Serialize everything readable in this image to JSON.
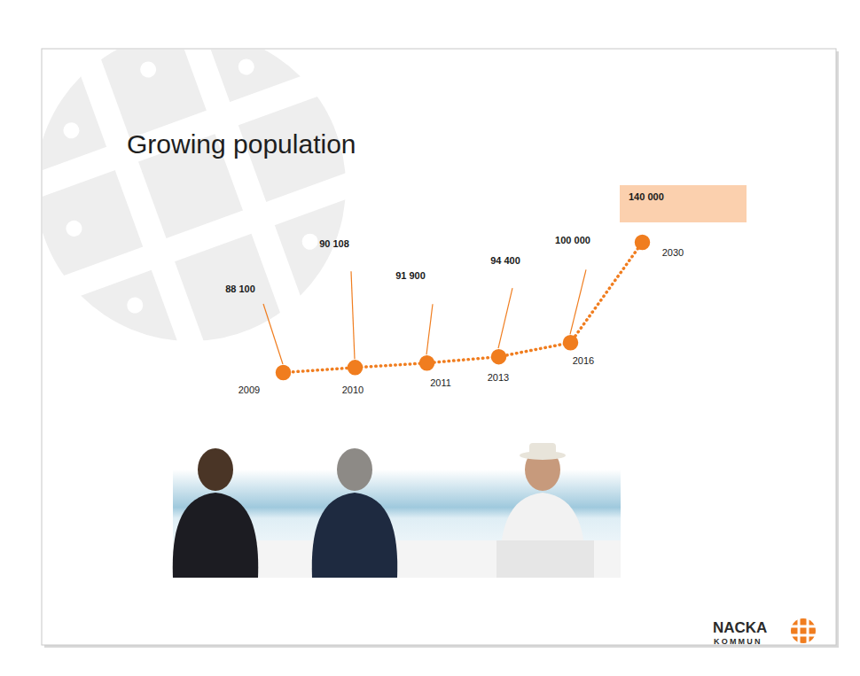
{
  "chart_data": {
    "type": "line",
    "title": "Growing population",
    "categories": [
      "2009",
      "2010",
      "2011",
      "2013",
      "2016",
      "2030"
    ],
    "values": [
      88100,
      90108,
      91900,
      94400,
      100000,
      140000
    ],
    "value_labels": [
      "88 100",
      "90 108",
      "91 900",
      "94 400",
      "100 000",
      "140 000"
    ],
    "data_labels": true,
    "color": "#f07d1f",
    "marker": "circle",
    "line_style": "dotted"
  },
  "logo": "NACKA KOMMUN"
}
